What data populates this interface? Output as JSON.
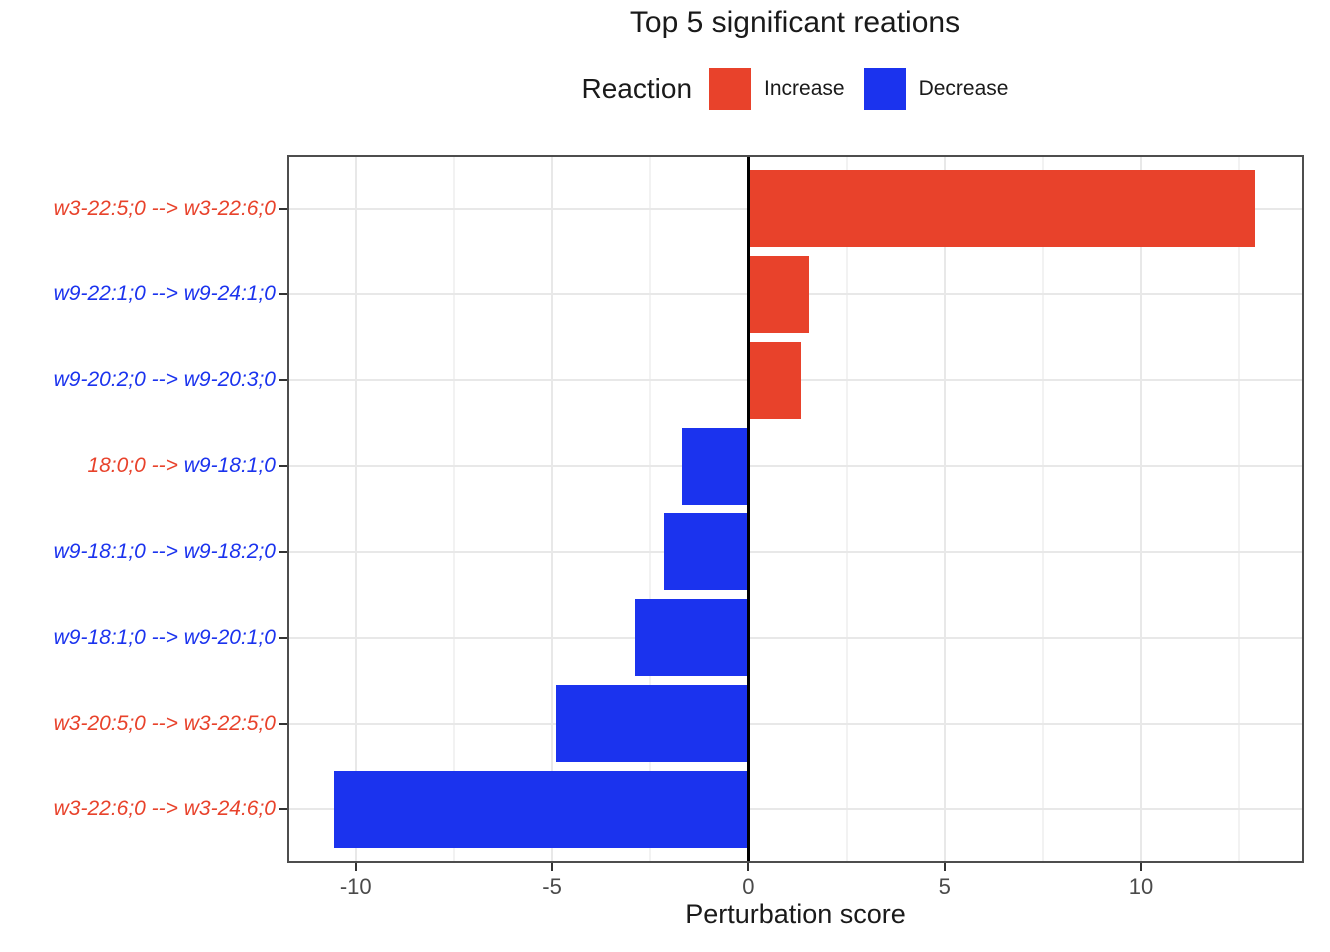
{
  "chart_data": {
    "type": "bar",
    "orientation": "horizontal",
    "title": "Top 5 significant reations",
    "xlabel": "Perturbation score",
    "xlim": [
      -11.7,
      14.1
    ],
    "x_major_ticks": [
      -10,
      -5,
      0,
      5,
      10
    ],
    "x_minor_ticks": [
      -7.5,
      -2.5,
      2.5,
      7.5,
      12.5
    ],
    "zero_line_x": 0,
    "grid": "on",
    "panel_border_color": "#4d4d4d",
    "palette": {
      "increase": "#E8422B",
      "decrease": "#1B33EE"
    },
    "legend": {
      "title": "Reaction",
      "position": "top",
      "items": [
        {
          "label": "Increase",
          "key": "increase"
        },
        {
          "label": "Decrease",
          "key": "decrease"
        }
      ]
    },
    "bars": [
      {
        "value": 12.9,
        "direction": "increase",
        "label_segments": [
          {
            "text": "w3-22:5;0 --> w3-22:6;0",
            "color": "#E8422B"
          }
        ]
      },
      {
        "value": 1.55,
        "direction": "increase",
        "label_segments": [
          {
            "text": "w9-22:1;0 --> w9-24:1;0",
            "color": "#1B33EE"
          }
        ]
      },
      {
        "value": 1.35,
        "direction": "increase",
        "label_segments": [
          {
            "text": "w9-20:2;0 --> w9-20:3;0",
            "color": "#1B33EE"
          }
        ]
      },
      {
        "value": -1.7,
        "direction": "decrease",
        "label_segments": [
          {
            "text": "18:0;0 --> ",
            "color": "#E8422B"
          },
          {
            "text": "w9-18:1;0",
            "color": "#1B33EE"
          }
        ]
      },
      {
        "value": -2.15,
        "direction": "decrease",
        "label_segments": [
          {
            "text": "w9-18:1;0 --> w9-18:2;0",
            "color": "#1B33EE"
          }
        ]
      },
      {
        "value": -2.9,
        "direction": "decrease",
        "label_segments": [
          {
            "text": "w9-18:1;0 --> w9-20:1;0",
            "color": "#1B33EE"
          }
        ]
      },
      {
        "value": -4.9,
        "direction": "decrease",
        "label_segments": [
          {
            "text": "w3-20:5;0 --> w3-22:5;0",
            "color": "#E8422B"
          }
        ]
      },
      {
        "value": -10.55,
        "direction": "decrease",
        "label_segments": [
          {
            "text": "w3-22:6;0 --> w3-24:6;0",
            "color": "#E8422B"
          }
        ]
      }
    ]
  }
}
